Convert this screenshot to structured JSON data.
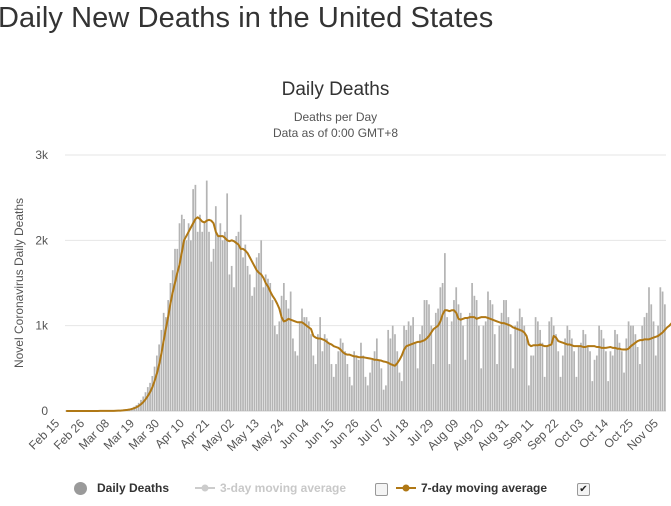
{
  "page_title": "Daily New Deaths in the United States",
  "chart_data": {
    "type": "bar",
    "title": "Daily Deaths",
    "subtitle_lines": [
      "Deaths per Day",
      "Data as of 0:00 GMT+8"
    ],
    "ylabel": "Novel Coronavirus Daily Deaths",
    "xlabel": "",
    "ylim": [
      0,
      3000
    ],
    "y_ticks": [
      "0",
      "1k",
      "2k",
      "3k"
    ],
    "x_tick_labels": [
      "Feb 15",
      "Feb 26",
      "Mar 08",
      "Mar 19",
      "Mar 30",
      "Apr 10",
      "Apr 21",
      "May 02",
      "May 13",
      "May 24",
      "Jun 04",
      "Jun 15",
      "Jun 26",
      "Jul 07",
      "Jul 18",
      "Jul 29",
      "Aug 09",
      "Aug 20",
      "Aug 31",
      "Sep 11",
      "Sep 22",
      "Oct 03",
      "Oct 14",
      "Oct 25",
      "Nov 05"
    ],
    "grid": true,
    "legend_placement": "bottom",
    "bar_color": "#b4b4b4",
    "line_color": "#b07815",
    "series": [
      {
        "name": "Daily Deaths",
        "type": "bar",
        "start_date": "Feb 15",
        "values": [
          0,
          0,
          0,
          0,
          0,
          0,
          0,
          0,
          0,
          0,
          0,
          0,
          0,
          0,
          0,
          1,
          0,
          2,
          1,
          1,
          2,
          3,
          5,
          6,
          8,
          10,
          14,
          19,
          25,
          35,
          50,
          70,
          95,
          130,
          170,
          220,
          280,
          330,
          410,
          520,
          650,
          780,
          950,
          1150,
          1100,
          1300,
          1500,
          1650,
          1900,
          1900,
          2200,
          2300,
          2250,
          2000,
          2200,
          2000,
          2600,
          2650,
          2100,
          2300,
          2100,
          2200,
          2700,
          2100,
          1750,
          1900,
          2400,
          2050,
          2200,
          2000,
          2100,
          2550,
          1600,
          1700,
          1450,
          2050,
          2100,
          2300,
          1800,
          1950,
          1700,
          1600,
          1350,
          1450,
          1800,
          1850,
          2000,
          1450,
          1600,
          1550,
          1500,
          1300,
          1000,
          900,
          1050,
          1350,
          1500,
          1300,
          1200,
          1400,
          850,
          700,
          650,
          1050,
          1200,
          1100,
          1100,
          1050,
          900,
          650,
          550,
          900,
          1100,
          700,
          900,
          850,
          800,
          550,
          400,
          550,
          700,
          850,
          800,
          700,
          550,
          400,
          300,
          700,
          650,
          600,
          800,
          650,
          400,
          300,
          450,
          600,
          700,
          850,
          600,
          500,
          250,
          300,
          950,
          850,
          1000,
          900,
          700,
          450,
          350,
          1000,
          950,
          1050,
          1000,
          1100,
          800,
          500,
          900,
          1000,
          1300,
          1300,
          1250,
          1000,
          550,
          1150,
          1200,
          1450,
          1500,
          1850,
          1100,
          550,
          1050,
          1300,
          1450,
          1250,
          1150,
          1000,
          600,
          1100,
          1150,
          1500,
          1350,
          1300,
          1000,
          500,
          1000,
          1050,
          1400,
          1300,
          1250,
          900,
          550,
          1000,
          1150,
          1300,
          1300,
          1100,
          900,
          500,
          1000,
          1050,
          1200,
          1100,
          1000,
          850,
          300,
          650,
          650,
          1100,
          1050,
          950,
          800,
          400,
          750,
          1050,
          1100,
          1000,
          900,
          700,
          400,
          650,
          850,
          1000,
          950,
          850,
          700,
          400,
          750,
          800,
          950,
          900,
          750,
          700,
          350,
          600,
          650,
          1000,
          950,
          850,
          700,
          350,
          700,
          650,
          950,
          900,
          800,
          700,
          450,
          850,
          1050,
          1000,
          1000,
          900,
          750,
          550,
          1000,
          1100,
          1150,
          1450,
          1250,
          1050,
          650,
          1000,
          1450,
          1400,
          1250
        ]
      },
      {
        "name": "3-day moving average",
        "type": "line",
        "enabled": false
      },
      {
        "name": "7-day moving average",
        "type": "line",
        "enabled": true,
        "start_date": "Feb 15",
        "values": [
          0,
          0,
          0,
          0,
          0,
          0,
          0,
          0,
          0,
          0,
          0,
          0,
          0,
          0,
          0,
          1,
          1,
          1,
          1,
          1,
          2,
          2,
          3,
          4,
          5,
          7,
          10,
          13,
          17,
          24,
          33,
          44,
          59,
          79,
          104,
          136,
          175,
          221,
          278,
          350,
          437,
          543,
          674,
          821,
          968,
          1106,
          1262,
          1391,
          1501,
          1619,
          1714,
          1857,
          2000,
          2050,
          2100,
          2150,
          2200,
          2250,
          2270,
          2250,
          2220,
          2210,
          2230,
          2240,
          2230,
          2200,
          2100,
          2050,
          2050,
          2050,
          2030,
          2000,
          1990,
          2000,
          1990,
          1970,
          1950,
          1900,
          1900,
          1880,
          1850,
          1800,
          1750,
          1700,
          1650,
          1620,
          1600,
          1560,
          1500,
          1460,
          1400,
          1350,
          1310,
          1260,
          1200,
          1100,
          1050,
          1060,
          1080,
          1070,
          1060,
          1050,
          1040,
          1040,
          1040,
          1020,
          1000,
          980,
          960,
          880,
          860,
          850,
          850,
          840,
          830,
          810,
          790,
          780,
          760,
          750,
          740,
          720,
          690,
          670,
          660,
          660,
          650,
          640,
          640,
          630,
          630,
          630,
          625,
          620,
          615,
          610,
          600,
          600,
          595,
          590,
          580,
          575,
          565,
          550,
          540,
          530,
          560,
          600,
          650,
          720,
          760,
          770,
          780,
          790,
          800,
          810,
          810,
          820,
          830,
          850,
          880,
          920,
          960,
          980,
          1000,
          1050,
          1130,
          1180,
          1180,
          1170,
          1180,
          1180,
          1150,
          1080,
          1070,
          1080,
          1090,
          1090,
          1100,
          1100,
          1100,
          1080,
          1090,
          1100,
          1100,
          1100,
          1090,
          1080,
          1070,
          1060,
          1050,
          1040,
          1030,
          1030,
          1020,
          1010,
          1000,
          980,
          970,
          960,
          950,
          940,
          920,
          880,
          780,
          760,
          770,
          770,
          770,
          780,
          770,
          760,
          760,
          770,
          780,
          880,
          860,
          820,
          810,
          800,
          790,
          780,
          780,
          770,
          760,
          760,
          760,
          760,
          750,
          750,
          760,
          760,
          760,
          760,
          750,
          750,
          740,
          740,
          740,
          745,
          750,
          740,
          740,
          730,
          730,
          720,
          720,
          720,
          730,
          760,
          780,
          800,
          820,
          830,
          830,
          840,
          840,
          840,
          850,
          860,
          870,
          880,
          900,
          920,
          950,
          980,
          1000,
          1030,
          1060,
          1080,
          1110,
          1140,
          1160
        ]
      }
    ]
  },
  "legend": {
    "items": [
      {
        "label": "Daily Deaths",
        "color": "#9a9a9a",
        "enabled": true
      },
      {
        "label": "3-day moving average",
        "color": "#cccccc",
        "enabled": false
      },
      {
        "label": "7-day moving average",
        "color": "#b07815",
        "enabled": true
      }
    ],
    "check_3day": "",
    "check_7day": "✔"
  }
}
